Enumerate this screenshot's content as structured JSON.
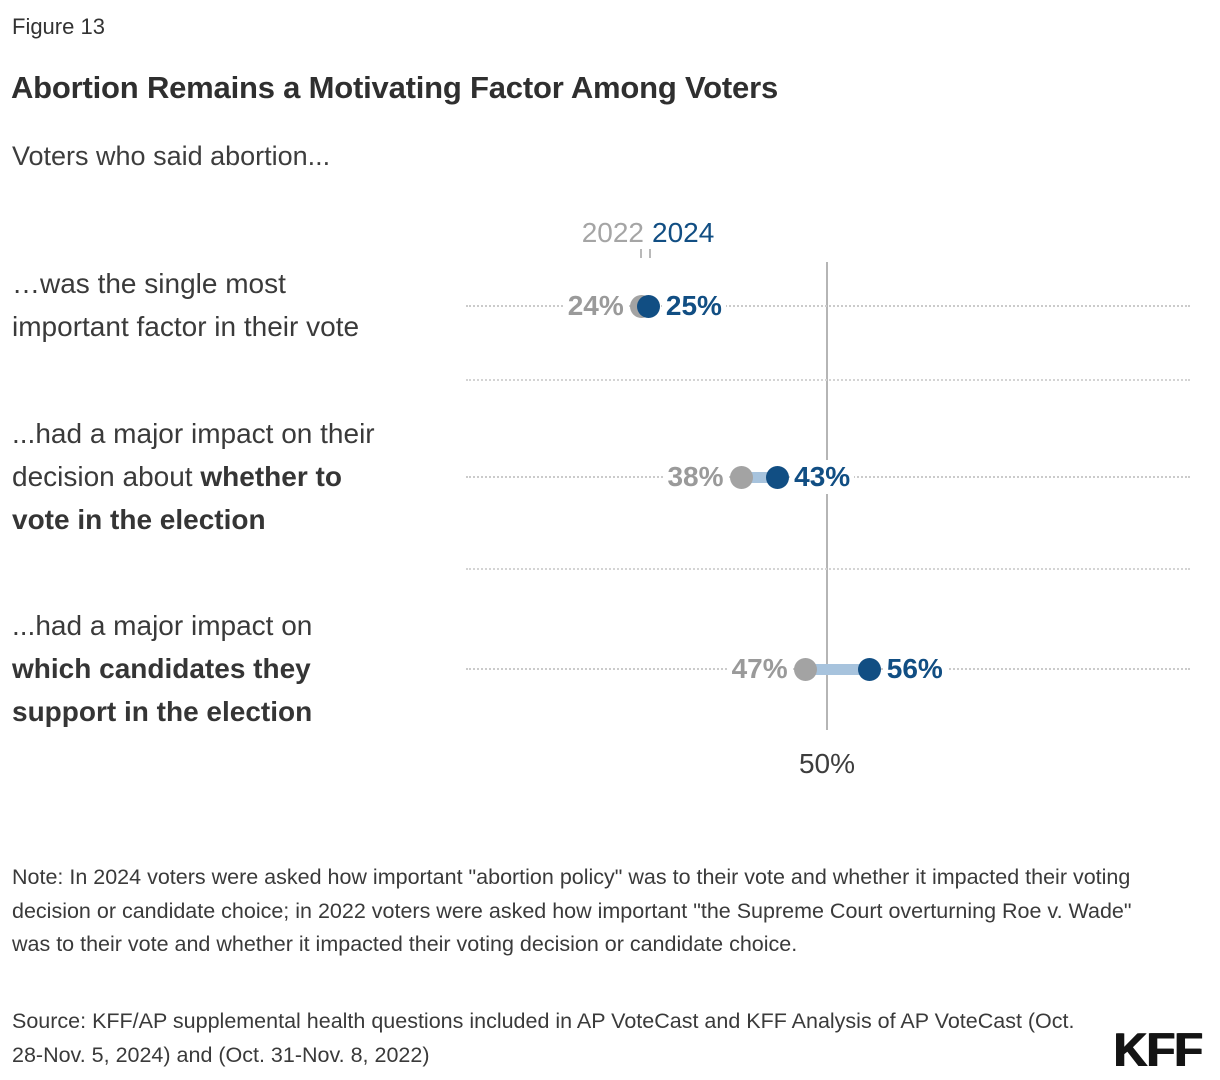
{
  "header": {
    "figure_label": "Figure 13",
    "title": "Abortion Remains a Motivating Factor Among Voters",
    "subtitle": "Voters who said abortion..."
  },
  "colors": {
    "blue_2024": "#114e83",
    "gray_2022": "#a3a3a3",
    "value_gray": "#9a9a9a",
    "connector": "#a7c3dd",
    "gridline": "#cbcbcb",
    "reference_line": "#b5b5b5"
  },
  "chart_data": {
    "type": "dumbbell",
    "legend": {
      "position": "top",
      "series": [
        {
          "name": "2022",
          "color": "#a5a5a5"
        },
        {
          "name": "2024",
          "color": "#114e83"
        }
      ]
    },
    "axis": {
      "reference_value": 50,
      "reference_label": "50%",
      "unit": "%",
      "grid": "dotted-horizontal"
    },
    "rows": [
      {
        "label_lines": [
          [
            {
              "text": "…was the single most",
              "bold": false
            }
          ],
          [
            {
              "text": "important factor in their vote",
              "bold": false
            }
          ]
        ],
        "values": {
          "y2022": 24,
          "y2024": 25
        },
        "value_labels": {
          "y2022": "24%",
          "y2024": "25%"
        }
      },
      {
        "label_lines": [
          [
            {
              "text": "...had a major impact on their",
              "bold": false
            }
          ],
          [
            {
              "text": "decision about ",
              "bold": false
            },
            {
              "text": "whether to",
              "bold": true
            }
          ],
          [
            {
              "text": "vote in the election",
              "bold": true
            }
          ]
        ],
        "values": {
          "y2022": 38,
          "y2024": 43
        },
        "value_labels": {
          "y2022": "38%",
          "y2024": "43%"
        }
      },
      {
        "label_lines": [
          [
            {
              "text": "...had a major impact on",
              "bold": false
            }
          ],
          [
            {
              "text": "which candidates they",
              "bold": true
            }
          ],
          [
            {
              "text": "support in the election",
              "bold": true
            }
          ]
        ],
        "values": {
          "y2022": 47,
          "y2024": 56
        },
        "value_labels": {
          "y2022": "47%",
          "y2024": "56%"
        }
      }
    ]
  },
  "footer": {
    "note": "Note: In 2024 voters were asked how important \"abortion policy\" was to their vote and whether it impacted their voting decision or candidate choice; in 2022 voters were asked how important \"the Supreme Court overturning Roe v. Wade\" was to their vote and whether it impacted their voting decision or candidate choice.",
    "source": "Source: KFF/AP supplemental health questions included in AP VoteCast and KFF Analysis of AP VoteCast (Oct. 28-Nov. 5, 2024) and (Oct. 31-Nov. 8, 2022)",
    "logo": "KFF"
  }
}
